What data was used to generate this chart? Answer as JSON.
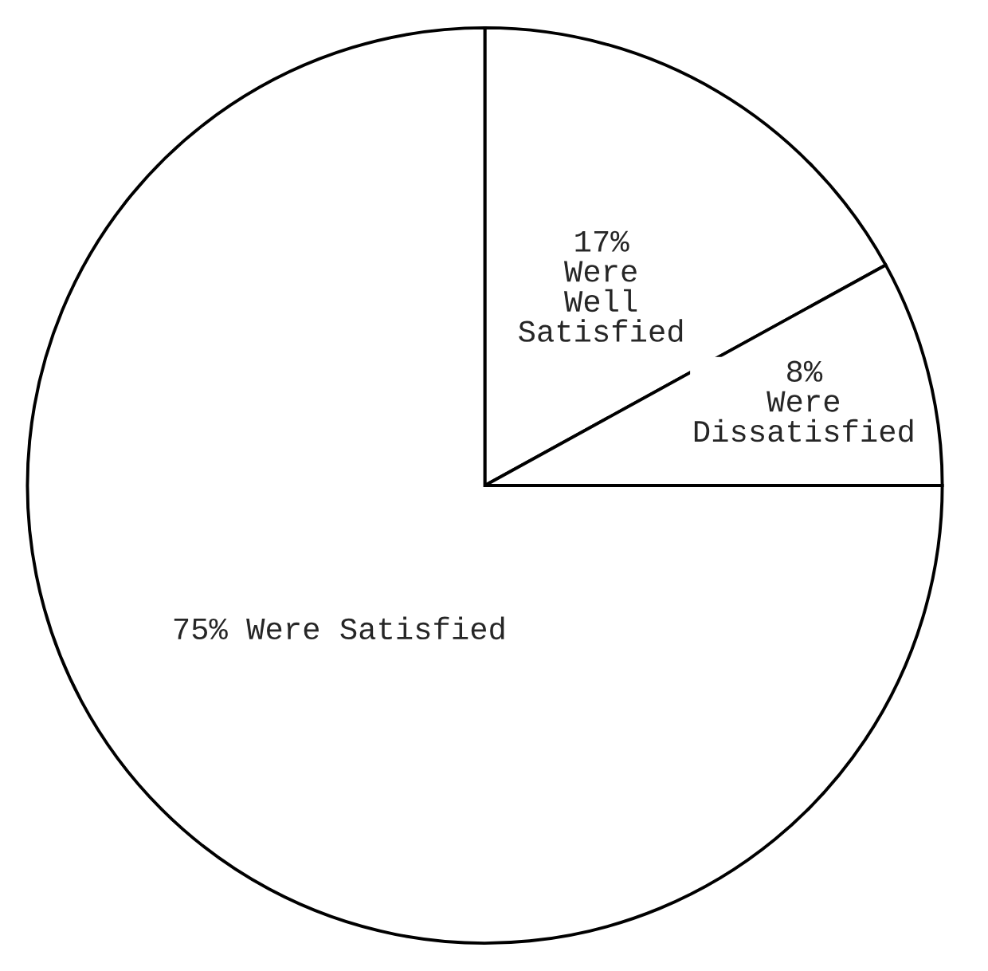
{
  "chart_data": {
    "type": "pie",
    "categories": [
      "Were\nWell\nSatisfied",
      "Were\nDissatisfied",
      "Were Satisfied"
    ],
    "values": [
      17,
      8,
      75
    ],
    "value_labels": [
      "17%",
      "8%",
      "75%"
    ],
    "colors": [
      "#ffffff",
      "#ffffff",
      "#ffffff"
    ]
  }
}
